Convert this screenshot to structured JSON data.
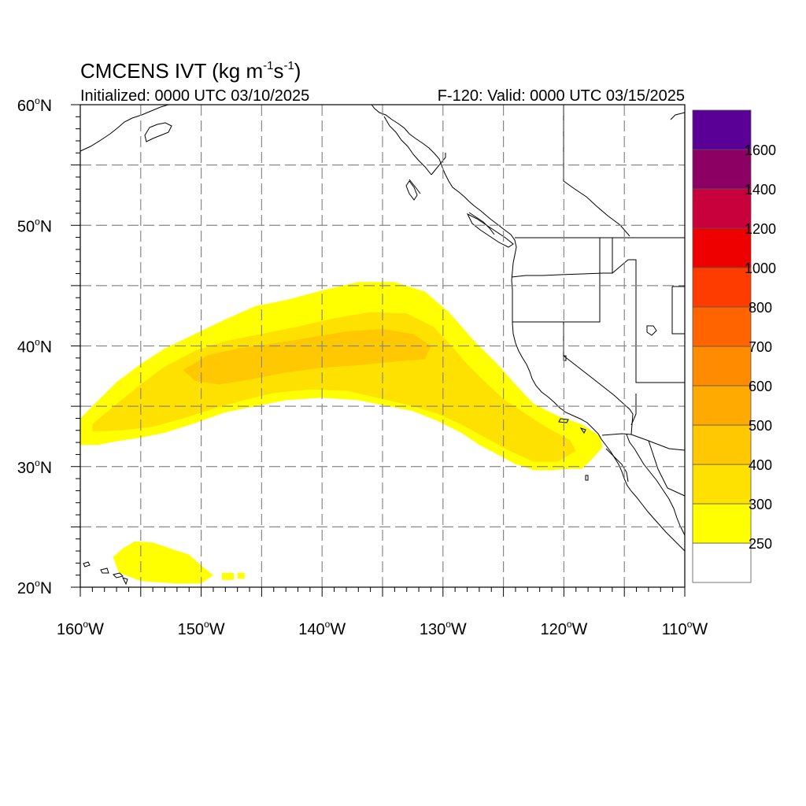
{
  "title": {
    "main": "CMCENS IVT (kg m",
    "sup1": "-1",
    "mid": "s",
    "sup2": "-1",
    "close": ")"
  },
  "initialized_label": "Initialized: 0000 UTC 03/10/2025",
  "valid_label": "F-120: Valid: 0000 UTC 03/15/2025",
  "map": {
    "lon_range": [
      -160,
      -110
    ],
    "lat_range": [
      20,
      60
    ],
    "grid": "dashed",
    "grid_lons": [
      -155,
      -150,
      -145,
      -140,
      -135,
      -130,
      -125,
      -120,
      -115
    ],
    "grid_lats": [
      25,
      30,
      35,
      40,
      45,
      50,
      55
    ],
    "lon_ticks": [
      {
        "value": -160,
        "label": "160",
        "deg": "o",
        "hemi": "W"
      },
      {
        "value": -150,
        "label": "150",
        "deg": "o",
        "hemi": "W"
      },
      {
        "value": -140,
        "label": "140",
        "deg": "o",
        "hemi": "W"
      },
      {
        "value": -130,
        "label": "130",
        "deg": "o",
        "hemi": "W"
      },
      {
        "value": -120,
        "label": "120",
        "deg": "o",
        "hemi": "W"
      },
      {
        "value": -110,
        "label": "110",
        "deg": "o",
        "hemi": "W"
      }
    ],
    "lat_ticks": [
      {
        "value": 20,
        "label": "20",
        "deg": "o",
        "hemi": "N"
      },
      {
        "value": 30,
        "label": "30",
        "deg": "o",
        "hemi": "N"
      },
      {
        "value": 40,
        "label": "40",
        "deg": "o",
        "hemi": "N"
      },
      {
        "value": 50,
        "label": "50",
        "deg": "o",
        "hemi": "N"
      },
      {
        "value": 60,
        "label": "60",
        "deg": "o",
        "hemi": "N"
      }
    ]
  },
  "colorbar": {
    "colors": [
      "#ffffff",
      "#ffff00",
      "#ffe100",
      "#ffc800",
      "#ffaa00",
      "#ff8c00",
      "#ff6400",
      "#ff3c00",
      "#ee0000",
      "#c8003c",
      "#8c0064",
      "#5a0096"
    ],
    "labels": [
      "250",
      "300",
      "400",
      "500",
      "600",
      "700",
      "800",
      "1000",
      "1200",
      "1400",
      "1600"
    ]
  },
  "ivt_regions": [
    {
      "name": "main-atmospheric-river",
      "level": 250,
      "color": "#ffff00",
      "polygon_lonlat": [
        [
          -160,
          34
        ],
        [
          -158.5,
          35.5
        ],
        [
          -157,
          37
        ],
        [
          -155,
          38.5
        ],
        [
          -153,
          39.8
        ],
        [
          -150.5,
          41
        ],
        [
          -148,
          42.2
        ],
        [
          -145.5,
          43.3
        ],
        [
          -143,
          43.8
        ],
        [
          -140,
          44.6
        ],
        [
          -137,
          45.3
        ],
        [
          -134,
          45.3
        ],
        [
          -131.5,
          44.5
        ],
        [
          -129.5,
          42.8
        ],
        [
          -127.5,
          40.5
        ],
        [
          -125.5,
          38.5
        ],
        [
          -124,
          36.8
        ],
        [
          -122.5,
          35.2
        ],
        [
          -120.5,
          34.2
        ],
        [
          -118.5,
          33.5
        ],
        [
          -117,
          32.5
        ],
        [
          -116.8,
          31.6
        ],
        [
          -117.5,
          30.8
        ],
        [
          -118.5,
          29.8
        ],
        [
          -119.5,
          29.8
        ],
        [
          -121,
          29.7
        ],
        [
          -122.5,
          29.7
        ],
        [
          -124,
          30.2
        ],
        [
          -125.5,
          31
        ],
        [
          -127,
          31.8
        ],
        [
          -128.5,
          32.8
        ],
        [
          -130.5,
          33.8
        ],
        [
          -132.5,
          34.6
        ],
        [
          -135,
          35.1
        ],
        [
          -137,
          35.5
        ],
        [
          -140,
          35.7
        ],
        [
          -143,
          35.5
        ],
        [
          -145.5,
          35
        ],
        [
          -148,
          34.5
        ],
        [
          -150.5,
          33.6
        ],
        [
          -153,
          32.8
        ],
        [
          -155,
          32.4
        ],
        [
          -157,
          32.1
        ],
        [
          -158.5,
          31.8
        ],
        [
          -160,
          31.8
        ]
      ]
    },
    {
      "name": "core-300",
      "level": 300,
      "color": "#ffe100",
      "polygon_lonlat": [
        [
          -159,
          33.5
        ],
        [
          -157,
          35.2
        ],
        [
          -155,
          36.8
        ],
        [
          -153,
          38.3
        ],
        [
          -150.5,
          39.6
        ],
        [
          -148,
          40.4
        ],
        [
          -145,
          41
        ],
        [
          -142,
          41.6
        ],
        [
          -139,
          42.3
        ],
        [
          -136,
          42.8
        ],
        [
          -133,
          42.7
        ],
        [
          -130.8,
          41.6
        ],
        [
          -129.3,
          40
        ],
        [
          -128,
          38.5
        ],
        [
          -126.5,
          37
        ],
        [
          -125,
          35.6
        ],
        [
          -123.5,
          34.6
        ],
        [
          -121.5,
          33.3
        ],
        [
          -119.5,
          32.2
        ],
        [
          -119,
          31.3
        ],
        [
          -120.5,
          30.4
        ],
        [
          -122.5,
          30.4
        ],
        [
          -124.5,
          31.3
        ],
        [
          -126.5,
          32.4
        ],
        [
          -128.5,
          33.5
        ],
        [
          -130.5,
          34.4
        ],
        [
          -132.5,
          35
        ],
        [
          -135,
          35.6
        ],
        [
          -138,
          36.3
        ],
        [
          -141,
          36.4
        ],
        [
          -144,
          36.1
        ],
        [
          -146.5,
          35.5
        ],
        [
          -149,
          34.8
        ],
        [
          -151.5,
          34
        ],
        [
          -154,
          33.3
        ],
        [
          -156.5,
          33
        ],
        [
          -159,
          32.9
        ]
      ]
    },
    {
      "name": "core-400",
      "level": 400,
      "color": "#ffc800",
      "polygon_lonlat": [
        [
          -151.5,
          38
        ],
        [
          -149.5,
          39.2
        ],
        [
          -147,
          39.8
        ],
        [
          -144,
          40.2
        ],
        [
          -141,
          40.7
        ],
        [
          -138,
          41.2
        ],
        [
          -135,
          41.4
        ],
        [
          -132.5,
          41
        ],
        [
          -131,
          40
        ],
        [
          -131.5,
          38.9
        ],
        [
          -134,
          38.7
        ],
        [
          -137,
          38.4
        ],
        [
          -140,
          38.2
        ],
        [
          -143,
          37.8
        ],
        [
          -146,
          37.2
        ],
        [
          -148.5,
          36.8
        ],
        [
          -150.5,
          37.1
        ]
      ]
    },
    {
      "name": "hawaii-patch",
      "level": 250,
      "color": "#ffff00",
      "polygon_lonlat": [
        [
          -157.3,
          22.5
        ],
        [
          -156.5,
          23.2
        ],
        [
          -155.5,
          23.8
        ],
        [
          -154,
          23.7
        ],
        [
          -152.5,
          23.2
        ],
        [
          -151,
          22.7
        ],
        [
          -150,
          21.8
        ],
        [
          -149,
          21
        ],
        [
          -150,
          20.3
        ],
        [
          -152,
          20.3
        ],
        [
          -155,
          20.5
        ],
        [
          -156.8,
          21.2
        ]
      ]
    },
    {
      "name": "hawaii-fragment-1",
      "level": 250,
      "color": "#ffff00",
      "polygon_lonlat": [
        [
          -148.3,
          21.2
        ],
        [
          -147.3,
          21.2
        ],
        [
          -147.3,
          20.6
        ],
        [
          -148.3,
          20.6
        ]
      ]
    },
    {
      "name": "hawaii-fragment-2",
      "level": 250,
      "color": "#ffff00",
      "polygon_lonlat": [
        [
          -147,
          21.2
        ],
        [
          -146.4,
          21.2
        ],
        [
          -146.4,
          20.7
        ],
        [
          -147,
          20.7
        ]
      ]
    }
  ]
}
